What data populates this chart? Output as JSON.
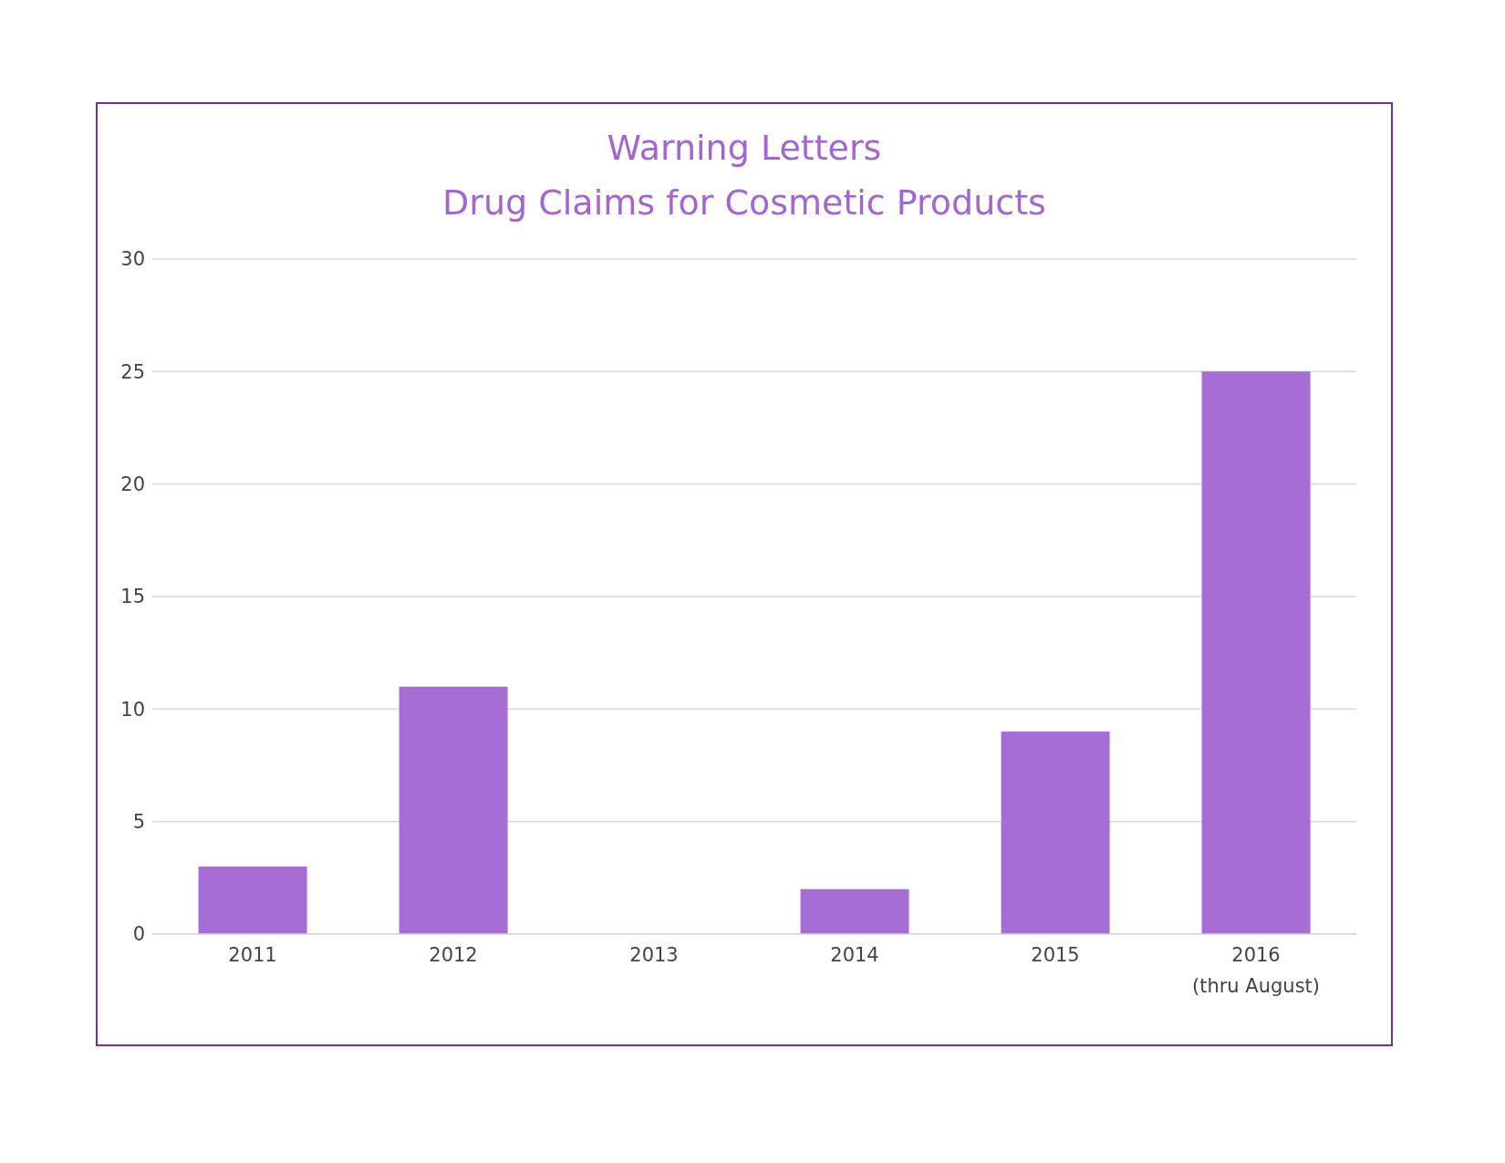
{
  "chart_data": {
    "type": "bar",
    "title": "Warning Letters",
    "subtitle": "Drug Claims for Cosmetic Products",
    "categories": [
      "2011",
      "2012",
      "2013",
      "2014",
      "2015",
      "2016 (thru August)"
    ],
    "values": [
      3,
      11,
      0,
      2,
      9,
      25
    ],
    "color": "#a66dd4",
    "ylim": [
      0,
      30
    ],
    "yticks": [
      0,
      5,
      10,
      15,
      20,
      25,
      30
    ],
    "grid": "y",
    "legend": false
  }
}
